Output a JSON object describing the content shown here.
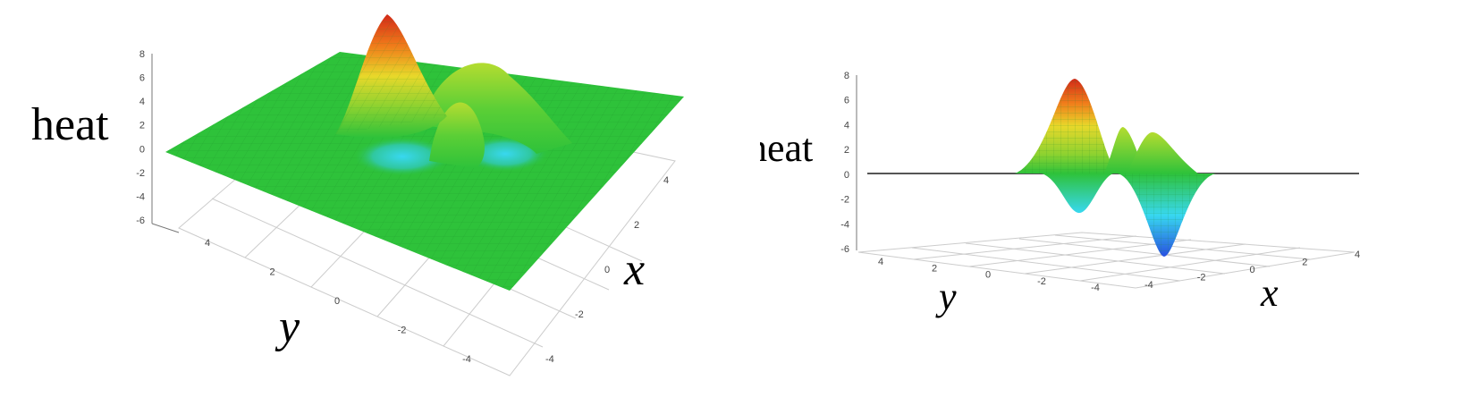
{
  "chart_data": [
    {
      "type": "surface",
      "view": "elevated",
      "zlabel": "heat",
      "xlabel": "x",
      "ylabel": "y",
      "z_ticks": [
        "8",
        "6",
        "4",
        "2",
        "0",
        "-2",
        "-4",
        "-6"
      ],
      "x_ticks": [
        "4",
        "2",
        "0",
        "-2",
        "-4"
      ],
      "y_ticks": [
        "4",
        "2",
        "0",
        "-2",
        "-4"
      ],
      "zlim": [
        -6,
        8
      ],
      "xlim": [
        -5,
        5
      ],
      "ylim": [
        -5,
        5
      ],
      "surface": [
        {
          "x": 2.0,
          "y": 1.0,
          "z": 7.5
        },
        {
          "x": -0.5,
          "y": -0.5,
          "z": 4.5
        },
        {
          "x": 0.5,
          "y": -1.5,
          "z": 4.0
        },
        {
          "x": -1.0,
          "y": 1.5,
          "z": -2.5
        },
        {
          "x": -1.5,
          "y": -1.5,
          "z": -5.5
        }
      ]
    },
    {
      "type": "surface",
      "view": "side",
      "zlabel": "heat",
      "xlabel": "x",
      "ylabel": "y",
      "z_ticks": [
        "8",
        "6",
        "4",
        "2",
        "0",
        "-2",
        "-4",
        "-6"
      ],
      "x_ticks": [
        "-4",
        "-2",
        "0",
        "2",
        "4"
      ],
      "y_ticks": [
        "4",
        "2",
        "0",
        "-2",
        "-4"
      ],
      "zlim": [
        -6,
        8
      ],
      "xlim": [
        -5,
        5
      ],
      "ylim": [
        -5,
        5
      ],
      "surface": [
        {
          "x": 2.0,
          "y": 1.0,
          "z": 7.5
        },
        {
          "x": -0.5,
          "y": -0.5,
          "z": 4.5
        },
        {
          "x": 0.5,
          "y": -1.5,
          "z": 4.0
        },
        {
          "x": -1.0,
          "y": 1.5,
          "z": -2.5
        },
        {
          "x": -1.5,
          "y": -1.5,
          "z": -5.5
        }
      ],
      "colors": {
        "high": "#e8281a",
        "mid": "#2ec23a",
        "low": "#2850e0",
        "cyan": "#38d8f0"
      }
    }
  ]
}
